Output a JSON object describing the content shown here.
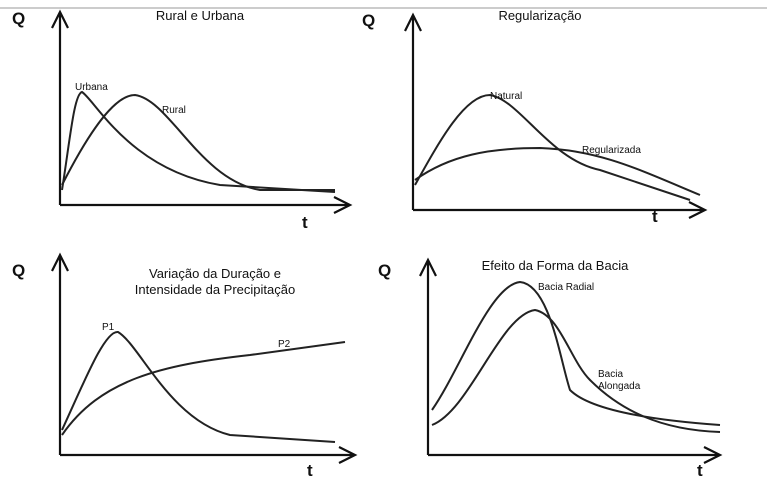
{
  "panels": [
    {
      "title": [
        "Rural e Urbana"
      ],
      "y_axis": "Q",
      "x_axis": "t",
      "curve_labels": [
        "Urbana",
        "Rural"
      ]
    },
    {
      "title": [
        "Regularização"
      ],
      "y_axis": "Q",
      "x_axis": "t",
      "curve_labels": [
        "Natural",
        "Regularizada"
      ]
    },
    {
      "title": [
        "Variação da Duração e",
        "Intensidade da Precipitação"
      ],
      "y_axis": "Q",
      "x_axis": "t",
      "curve_labels": [
        "P1",
        "P2"
      ]
    },
    {
      "title": [
        "Efeito da Forma da Bacia"
      ],
      "y_axis": "Q",
      "x_axis": "t",
      "curve_labels": [
        "Bacia Radial",
        "Bacia",
        "Alongada"
      ]
    }
  ]
}
